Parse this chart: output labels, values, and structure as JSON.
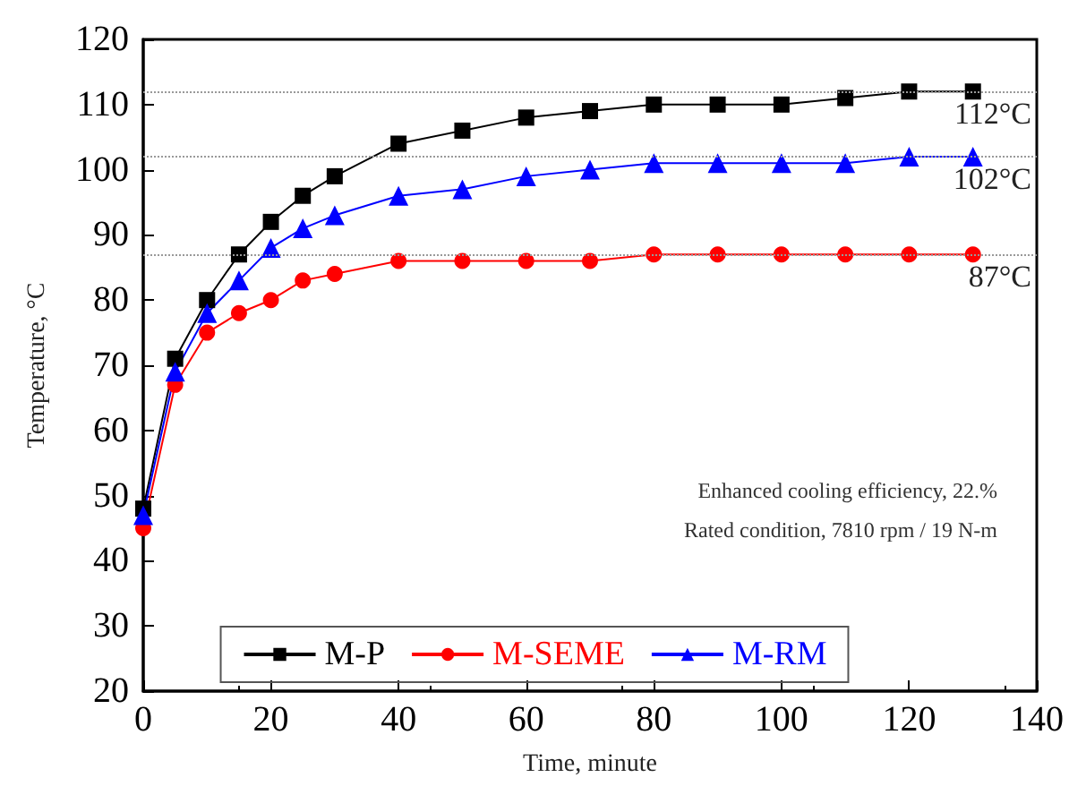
{
  "chart_data": {
    "type": "line",
    "xlabel": "Time, minute",
    "ylabel": "Temperature, °C",
    "x": [
      0,
      5,
      10,
      15,
      20,
      25,
      30,
      40,
      50,
      60,
      70,
      80,
      90,
      100,
      110,
      120,
      130
    ],
    "series": [
      {
        "name": "M-P",
        "color": "#000000",
        "marker": "square",
        "values": [
          48,
          71,
          80,
          87,
          92,
          96,
          99,
          104,
          106,
          108,
          109,
          110,
          110,
          110,
          111,
          112,
          112
        ]
      },
      {
        "name": "M-SEME",
        "color": "#ff0000",
        "marker": "circle",
        "values": [
          45,
          67,
          75,
          78,
          80,
          83,
          84,
          86,
          86,
          86,
          86,
          87,
          87,
          87,
          87,
          87,
          87
        ]
      },
      {
        "name": "M-RM",
        "color": "#0000ff",
        "marker": "triangle",
        "values": [
          47,
          69,
          78,
          83,
          88,
          91,
          93,
          96,
          97,
          99,
          100,
          101,
          101,
          101,
          101,
          102,
          102
        ]
      }
    ],
    "xlim": [
      0,
      140
    ],
    "xticks": [
      0,
      20,
      40,
      60,
      80,
      100,
      120,
      140
    ],
    "ylim": [
      20,
      120
    ],
    "yticks": [
      20,
      30,
      40,
      50,
      60,
      70,
      80,
      90,
      100,
      110,
      120
    ],
    "ref_lines": [
      {
        "axis": "y",
        "value": 112,
        "label": "112°C",
        "color": "#999999",
        "line_style": "dotted"
      },
      {
        "axis": "y",
        "value": 102,
        "label": "102°C",
        "color": "#999999",
        "line_style": "dotted"
      },
      {
        "axis": "y",
        "value": 87,
        "label": "87°C",
        "color": "#999999",
        "line_style": "dotted"
      }
    ],
    "annotations": [
      "Enhanced cooling efficiency, 22.%",
      "Rated condition, 7810 rpm / 19 N-m"
    ],
    "grid": false,
    "legend": "bottom"
  }
}
